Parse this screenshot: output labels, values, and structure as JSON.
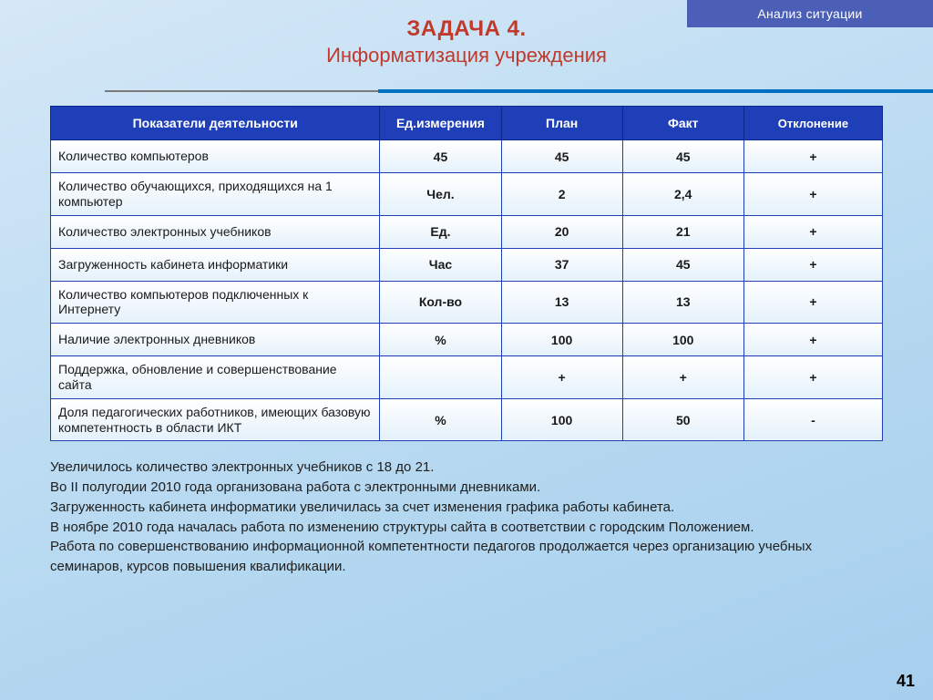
{
  "header": {
    "badge": "Анализ ситуации"
  },
  "title": {
    "line1": "ЗАДАЧА 4.",
    "line2": "Информатизация учреждения"
  },
  "table": {
    "columns": {
      "metric": "Показатели деятельности",
      "unit": "Ед.измерения",
      "plan": "План",
      "fact": "Факт",
      "dev": "Отклонение"
    },
    "rows": [
      {
        "metric": "Количество компьютеров",
        "unit": "45",
        "plan": "45",
        "fact": "45",
        "dev": "+"
      },
      {
        "metric": "Количество обучающихся, приходящихся на 1 компьютер",
        "unit": "Чел.",
        "plan": "2",
        "fact": "2,4",
        "dev": "+"
      },
      {
        "metric": "Количество электронных учебников",
        "unit": "Ед.",
        "plan": "20",
        "fact": "21",
        "dev": "+"
      },
      {
        "metric": "Загруженность кабинета информатики",
        "unit": "Час",
        "plan": "37",
        "fact": "45",
        "dev": "+"
      },
      {
        "metric": "Количество компьютеров подключенных к Интернету",
        "unit": "Кол-во",
        "plan": "13",
        "fact": "13",
        "dev": "+"
      },
      {
        "metric": "Наличие электронных дневников",
        "unit": "%",
        "plan": "100",
        "fact": "100",
        "dev": "+"
      },
      {
        "metric": "Поддержка, обновление и совершенствование сайта",
        "unit": "",
        "plan": "+",
        "fact": "+",
        "dev": "+"
      },
      {
        "metric": "Доля педагогических работников, имеющих базовую компетентность в области ИКТ",
        "unit": "%",
        "plan": "100",
        "fact": "50",
        "dev": "-"
      }
    ]
  },
  "notes": [
    "Увеличилось количество электронных учебников с 18 до 21.",
    "Во II полугодии 2010 года организована работа с электронными дневниками.",
    "Загруженность кабинета информатики увеличилась за счет изменения графика работы кабинета.",
    "В ноябре 2010 года началась работа по изменению структуры сайта в соответствии с городским Положением.",
    "Работа по совершенствованию информационной компетентности педагогов продолжается через организацию учебных семинаров, курсов повышения квалификации."
  ],
  "page_number": "41",
  "colors": {
    "header_badge_bg": "#4a5fb5",
    "title_color": "#c0392b",
    "table_header_bg": "#1e3fb8",
    "table_border": "#1e3fb8",
    "rule_blue": "#0070c0",
    "rule_grey": "#7a7a7a"
  }
}
